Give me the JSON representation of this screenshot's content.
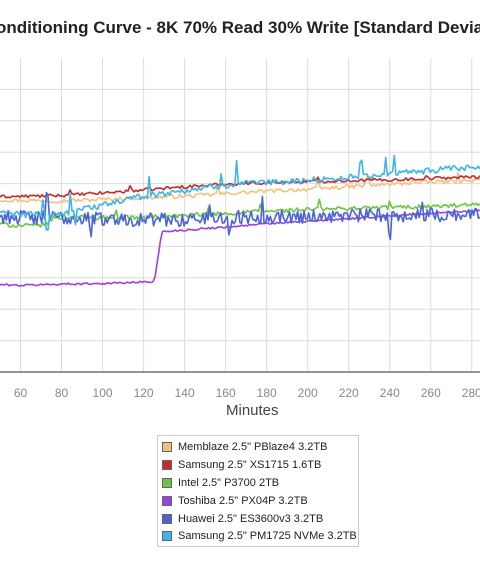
{
  "title": "onditioning Curve - 8K 70% Read 30% Write [Standard Devia",
  "colors": {
    "grid": "#dcdcdc",
    "axis": "#555555"
  },
  "chart_data": {
    "type": "line",
    "title": "onditioning Curve - 8K 70% Read 30% Write [Standard Devia",
    "xlabel": "Minutes",
    "ylabel": "",
    "x_ticks": [
      60,
      80,
      100,
      120,
      140,
      160,
      180,
      200,
      220,
      240,
      260,
      280
    ],
    "x_tick_labels": [
      "60",
      "80",
      "100",
      "120",
      "140",
      "160",
      "180",
      "200",
      "220",
      "240",
      "260",
      "280"
    ],
    "xlim": [
      50,
      284
    ],
    "ylim": [
      0,
      10
    ],
    "y_grid_values": [
      1,
      2,
      3,
      4,
      5,
      6,
      7,
      8,
      9
    ],
    "grid": true,
    "legend_position": "bottom-center",
    "series": [
      {
        "name": "Memblaze 2.5\" PBlaze4 3.2TB",
        "color": "#f2c17d",
        "x": [
          50,
          80,
          100,
          120,
          140,
          160,
          180,
          200,
          220,
          240,
          260,
          284
        ],
        "y": [
          5.48,
          5.45,
          5.5,
          5.55,
          5.6,
          5.68,
          5.76,
          5.82,
          5.9,
          5.98,
          6.05,
          6.1
        ],
        "noise": 0.06,
        "spikes": [
          [
            156,
            0.26
          ],
          [
            205,
            0.31
          ],
          [
            229,
            0.24
          ],
          [
            251,
            0.17
          ],
          [
            273,
            0.3
          ]
        ],
        "samples": 240
      },
      {
        "name": "Samsung 2.5\" XS1715 1.6TB",
        "color": "#c42a2a",
        "x": [
          50,
          80,
          100,
          120,
          140,
          160,
          180,
          200,
          220,
          240,
          260,
          284
        ],
        "y": [
          5.58,
          5.62,
          5.7,
          5.8,
          5.9,
          5.98,
          6.03,
          6.06,
          6.1,
          6.12,
          6.17,
          6.22
        ],
        "noise": 0.05,
        "spikes": [
          [
            84,
            0.21
          ],
          [
            113,
            0.18
          ],
          [
            205,
            0.14
          ],
          [
            258,
            0.12
          ]
        ],
        "samples": 240
      },
      {
        "name": "Intel 2.5\" P3700 2TB",
        "color": "#6cc644",
        "x": [
          50,
          58,
          68,
          74,
          76,
          100,
          120,
          140,
          160,
          180,
          200,
          220,
          240,
          260,
          284
        ],
        "y": [
          4.72,
          4.66,
          4.66,
          4.75,
          4.93,
          4.92,
          4.92,
          4.98,
          5.05,
          5.12,
          5.17,
          5.21,
          5.24,
          5.27,
          5.32
        ],
        "noise": 0.07,
        "spikes": [
          [
            107,
            0.27
          ],
          [
            152,
            0.23
          ],
          [
            177,
            0.25
          ],
          [
            206,
            0.34
          ],
          [
            240,
            0.22
          ]
        ],
        "samples": 260
      },
      {
        "name": "Toshiba 2.5\" PX04P 3.2TB",
        "color": "#9b3fe8",
        "x": [
          50,
          60,
          80,
          100,
          110,
          125,
          126,
          127,
          128,
          129,
          140,
          160,
          180,
          200,
          220,
          240,
          260,
          284
        ],
        "y": [
          2.78,
          2.76,
          2.8,
          2.82,
          2.84,
          2.88,
          3.2,
          3.6,
          4.1,
          4.47,
          4.52,
          4.62,
          4.72,
          4.8,
          4.88,
          4.97,
          5.05,
          5.15
        ],
        "noise": 0.03,
        "spikes": [],
        "samples": 260
      },
      {
        "name": "Huawei 2.5\" ES3600v3 3.2TB",
        "color": "#4a63d6",
        "x": [
          50,
          80,
          100,
          120,
          140,
          160,
          180,
          200,
          220,
          240,
          260,
          284
        ],
        "y": [
          4.95,
          4.9,
          4.88,
          4.85,
          4.85,
          4.92,
          4.95,
          4.96,
          4.98,
          4.99,
          5.0,
          5.02
        ],
        "noise": 0.22,
        "spikes": [
          [
            68,
            -0.33
          ],
          [
            73,
            0.81
          ],
          [
            94,
            -0.38
          ],
          [
            152,
            0.54
          ],
          [
            162,
            -0.51
          ],
          [
            178,
            0.63
          ],
          [
            240,
            -0.58
          ],
          [
            256,
            0.55
          ]
        ],
        "samples": 300
      },
      {
        "name": "Samsung 2.5\" PM1725 NVMe 3.2TB",
        "color": "#3db5e8",
        "x": [
          50,
          60,
          70,
          80,
          85,
          100,
          112,
          120,
          140,
          160,
          180,
          200,
          220,
          240,
          260,
          284
        ],
        "y": [
          5.1,
          5.0,
          5.05,
          5.0,
          5.15,
          5.3,
          5.5,
          5.6,
          5.78,
          5.95,
          6.03,
          6.1,
          6.2,
          6.3,
          6.42,
          6.52
        ],
        "noise": 0.1,
        "spikes": [
          [
            71,
            0.43
          ],
          [
            73,
            -0.5
          ],
          [
            84,
            0.62
          ],
          [
            87,
            -0.42
          ],
          [
            123,
            0.59
          ],
          [
            158,
            0.38
          ],
          [
            165,
            0.8
          ],
          [
            226,
            0.42
          ],
          [
            238,
            0.6
          ],
          [
            242,
            0.64
          ]
        ],
        "samples": 280
      }
    ]
  },
  "legend": {
    "items": [
      {
        "label": "Memblaze 2.5\" PBlaze4 3.2TB",
        "color": "#f2c17d"
      },
      {
        "label": "Samsung 2.5\" XS1715 1.6TB",
        "color": "#c42a2a"
      },
      {
        "label": "Intel 2.5\" P3700 2TB",
        "color": "#6cc644"
      },
      {
        "label": "Toshiba 2.5\" PX04P 3.2TB",
        "color": "#9b3fe8"
      },
      {
        "label": "Huawei 2.5\" ES3600v3 3.2TB",
        "color": "#4a63d6"
      },
      {
        "label": "Samsung 2.5\" PM1725 NVMe 3.2TB",
        "color": "#3db5e8"
      }
    ]
  }
}
